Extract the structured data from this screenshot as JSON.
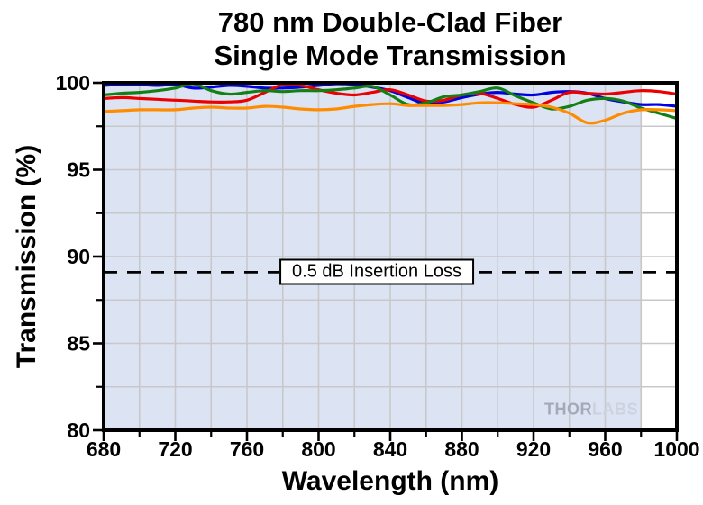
{
  "title": {
    "line1": "780 nm Double-Clad Fiber",
    "line2": "Single Mode Transmission"
  },
  "y_axis": {
    "label": "Transmission (%)",
    "ticks": [
      100,
      95,
      90,
      85,
      80
    ],
    "minor_ticks": [
      97.5,
      92.5,
      87.5,
      82.5
    ],
    "range": [
      80,
      100
    ]
  },
  "x_axis": {
    "label": "Wavelength (nm)",
    "ticks": [
      680,
      720,
      760,
      800,
      840,
      880,
      920,
      960,
      1000
    ],
    "minor_ticks": [
      700,
      740,
      780,
      820,
      860,
      900,
      940,
      980
    ],
    "range": [
      680,
      1000
    ]
  },
  "annotation": {
    "label": "0.5 dB Insertion Loss",
    "y_value": 89.1
  },
  "watermark": {
    "part1": "THOR",
    "part2": "LABS"
  },
  "colors": {
    "plot_background": "#dce3f3",
    "gridline": "#c8c8c8",
    "annotation_line": "#000000",
    "series_blue": "#0000e0",
    "series_red": "#ea0000",
    "series_green": "#148014",
    "series_orange": "#ff8c00"
  },
  "chart_data": {
    "type": "line",
    "title": "780 nm Double-Clad Fiber Single Mode Transmission",
    "xlabel": "Wavelength (nm)",
    "ylabel": "Transmission (%)",
    "xlim": [
      680,
      1000
    ],
    "ylim": [
      80,
      100
    ],
    "grid": true,
    "grid_step_x": 20,
    "grid_step_y": 2.5,
    "legend": "none",
    "background_fill_x_range": [
      680,
      980
    ],
    "x": [
      680,
      690,
      700,
      710,
      720,
      730,
      740,
      750,
      760,
      770,
      780,
      790,
      800,
      810,
      820,
      830,
      840,
      850,
      860,
      870,
      880,
      890,
      900,
      910,
      920,
      930,
      940,
      950,
      960,
      970,
      980,
      990,
      1000
    ],
    "series": [
      {
        "name": "blue",
        "color": "#0000e0",
        "values": [
          99.85,
          99.9,
          99.9,
          99.85,
          99.9,
          99.7,
          99.75,
          99.85,
          99.8,
          99.7,
          99.7,
          99.75,
          99.85,
          99.95,
          99.9,
          99.75,
          99.55,
          99.15,
          98.8,
          98.9,
          99.15,
          99.35,
          99.45,
          99.35,
          99.3,
          99.45,
          99.5,
          99.4,
          99.1,
          98.9,
          98.75,
          98.75,
          98.65
        ]
      },
      {
        "name": "red",
        "color": "#ea0000",
        "values": [
          99.1,
          99.15,
          99.1,
          99.05,
          99.0,
          98.95,
          98.9,
          98.9,
          99.0,
          99.45,
          99.9,
          99.85,
          99.6,
          99.4,
          99.3,
          99.45,
          99.6,
          99.3,
          98.95,
          99.0,
          99.3,
          99.4,
          99.1,
          98.75,
          98.6,
          99.0,
          99.45,
          99.4,
          99.35,
          99.45,
          99.55,
          99.5,
          99.35
        ]
      },
      {
        "name": "green",
        "color": "#148014",
        "values": [
          99.3,
          99.4,
          99.45,
          99.55,
          99.7,
          99.95,
          99.55,
          99.35,
          99.45,
          99.55,
          99.5,
          99.55,
          99.55,
          99.6,
          99.7,
          99.8,
          99.3,
          98.75,
          98.85,
          99.2,
          99.3,
          99.5,
          99.7,
          99.25,
          98.85,
          98.5,
          98.65,
          99.0,
          99.1,
          98.95,
          98.55,
          98.25,
          97.95
        ]
      },
      {
        "name": "orange",
        "color": "#ff8c00",
        "values": [
          98.35,
          98.4,
          98.45,
          98.45,
          98.45,
          98.55,
          98.6,
          98.55,
          98.55,
          98.65,
          98.6,
          98.5,
          98.45,
          98.5,
          98.65,
          98.75,
          98.8,
          98.7,
          98.7,
          98.7,
          98.75,
          98.85,
          98.85,
          98.8,
          98.75,
          98.6,
          98.25,
          97.7,
          97.85,
          98.25,
          98.45,
          98.45,
          98.4
        ]
      }
    ],
    "annotations": [
      {
        "type": "hline",
        "y": 89.1,
        "line_style": "dashed",
        "color": "#000000",
        "label": "0.5 dB Insertion Loss"
      }
    ]
  }
}
